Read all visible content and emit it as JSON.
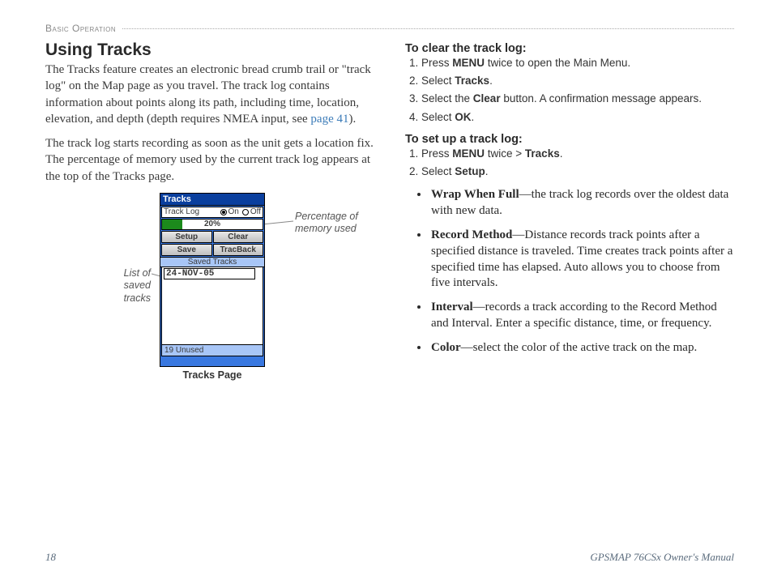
{
  "header": {
    "section": "Basic Operation"
  },
  "left": {
    "title": "Using Tracks",
    "p1_a": "The Tracks feature creates an electronic bread crumb trail or \"track log\" on the Map page as you travel. The track log contains information about points along its path, including time, location, elevation, and depth (depth requires NMEA input, see ",
    "p1_link": "page 41",
    "p1_b": ").",
    "p2": "The track log starts recording as soon as the unit gets a location fix. The percentage of memory used by the current track log appears at the top of the Tracks page."
  },
  "device": {
    "title": "Tracks",
    "row_label": "Track Log",
    "on": "On",
    "off": "Off",
    "percent_value": 20,
    "percent_label": "20%",
    "btn_setup": "Setup",
    "btn_clear": "Clear",
    "btn_save": "Save",
    "btn_tracback": "TracBack",
    "saved_header": "Saved Tracks",
    "saved_item": "24-NOV-05",
    "unused": "19 Unused",
    "caption": "Tracks Page",
    "callout_right": "Percentage of memory used",
    "callout_left": "List of saved tracks",
    "bar_fill_color": "#1c8a1c",
    "frame_color": "#3978e0"
  },
  "right": {
    "h1": "To clear the track log:",
    "s1": [
      "Press <b>MENU</b> twice to open the Main Menu.",
      "Select <b>Tracks</b>.",
      "Select the <b>Clear</b> button. A confirmation message appears.",
      "Select <b>OK</b>."
    ],
    "h2": "To set up a track log:",
    "s2": [
      "Press <b>MENU</b> twice > <b>Tracks</b>.",
      "Select <b>Setup</b>."
    ],
    "bullets": [
      "<b>Wrap When Full</b>—the track log records over the oldest data with new data.",
      "<b>Record Method</b>—<span class='serif-term'>Distance</span> records track points after a specified distance is traveled. <span class='serif-term'>Time</span> creates track points after a specified time has elapsed. <span class='serif-term'>Auto</span> allows you to choose from five intervals.",
      "<b>Interval</b>—records a track according to the Record Method and Interval. Enter a specific distance, time, or frequency.",
      "<b>Color</b>—select the color of the active track on the map."
    ]
  },
  "footer": {
    "page": "18",
    "manual": "GPSMAP 76CSx Owner's Manual"
  }
}
